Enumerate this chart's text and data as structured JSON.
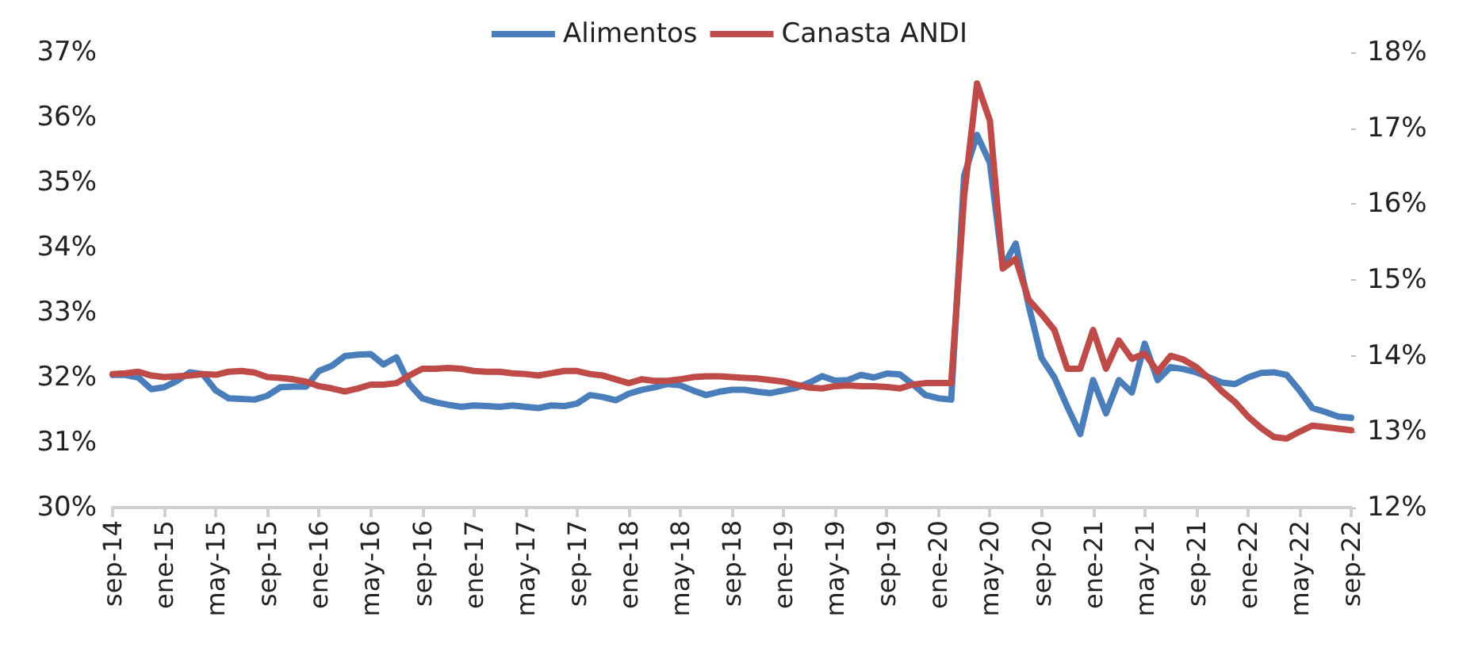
{
  "chart_data": {
    "type": "line",
    "categories": [
      "sep-14",
      null,
      null,
      null,
      "ene-15",
      null,
      null,
      null,
      "may-15",
      null,
      null,
      null,
      "sep-15",
      null,
      null,
      null,
      "ene-16",
      null,
      null,
      null,
      "may-16",
      null,
      null,
      null,
      "sep-16",
      null,
      null,
      null,
      "ene-17",
      null,
      null,
      null,
      "may-17",
      null,
      null,
      null,
      "sep-17",
      null,
      null,
      null,
      "ene-18",
      null,
      null,
      null,
      "may-18",
      null,
      null,
      null,
      "sep-18",
      null,
      null,
      null,
      "ene-19",
      null,
      null,
      null,
      "may-19",
      null,
      null,
      null,
      "sep-19",
      null,
      null,
      null,
      "ene-20",
      null,
      null,
      null,
      "may-20",
      null,
      null,
      null,
      "sep-20",
      null,
      null,
      null,
      "ene-21",
      null,
      null,
      null,
      "may-21",
      null,
      null,
      null,
      "sep-21",
      null,
      null,
      null,
      "ene-22",
      null,
      null,
      null,
      "may-22",
      null,
      null,
      null,
      "sep-22"
    ],
    "series": [
      {
        "name": "Alimentos",
        "color": "#4a7ebb",
        "values": [
          32.04,
          32.04,
          32.0,
          31.82,
          31.85,
          31.95,
          32.08,
          32.05,
          31.8,
          31.68,
          31.67,
          31.66,
          31.72,
          31.85,
          31.86,
          31.86,
          32.1,
          32.18,
          32.33,
          32.35,
          32.36,
          32.2,
          32.31,
          31.9,
          31.68,
          31.62,
          31.58,
          31.55,
          31.57,
          31.56,
          31.55,
          31.57,
          31.55,
          31.53,
          31.57,
          31.56,
          31.6,
          31.73,
          31.7,
          31.65,
          31.75,
          31.81,
          31.85,
          31.9,
          31.88,
          31.8,
          31.73,
          31.78,
          31.81,
          31.81,
          31.78,
          31.76,
          31.8,
          31.84,
          31.92,
          32.02,
          31.95,
          31.96,
          32.04,
          32.0,
          32.06,
          32.05,
          31.9,
          31.73,
          31.68,
          31.66,
          35.1,
          35.73,
          35.3,
          33.7,
          34.06,
          33.11,
          32.3,
          32.0,
          31.55,
          31.13,
          31.96,
          31.45,
          31.96,
          31.77,
          32.52,
          31.96,
          32.16,
          32.13,
          32.08,
          32.0,
          31.92,
          31.9,
          32.0,
          32.07,
          32.08,
          32.04,
          31.8,
          31.53,
          31.47,
          31.4,
          31.38
        ]
      },
      {
        "name": "Canasta ANDI",
        "color": "#be4b48",
        "axis": "y2",
        "values": [
          13.76,
          13.77,
          13.79,
          13.74,
          13.72,
          13.73,
          13.74,
          13.76,
          13.75,
          13.79,
          13.8,
          13.78,
          13.72,
          13.71,
          13.69,
          13.66,
          13.6,
          13.57,
          13.53,
          13.57,
          13.62,
          13.62,
          13.64,
          13.74,
          13.83,
          13.83,
          13.84,
          13.83,
          13.8,
          13.79,
          13.79,
          13.77,
          13.76,
          13.74,
          13.77,
          13.8,
          13.8,
          13.76,
          13.74,
          13.69,
          13.64,
          13.69,
          13.67,
          13.67,
          13.69,
          13.72,
          13.73,
          13.73,
          13.72,
          13.71,
          13.7,
          13.68,
          13.66,
          13.62,
          13.58,
          13.57,
          13.6,
          13.61,
          13.6,
          13.6,
          13.59,
          13.57,
          13.62,
          13.64,
          13.64,
          13.64,
          16.1,
          17.59,
          17.1,
          15.15,
          15.28,
          14.74,
          14.55,
          14.34,
          13.83,
          13.83,
          14.34,
          13.83,
          14.2,
          13.96,
          14.03,
          13.79,
          14.0,
          13.95,
          13.85,
          13.7,
          13.53,
          13.39,
          13.2,
          13.05,
          12.93,
          12.91,
          13.0,
          13.08,
          13.06,
          13.04,
          13.02
        ]
      }
    ],
    "ylim": [
      30,
      37
    ],
    "yticks": [
      {
        "value": 30,
        "label": "30%"
      },
      {
        "value": 31,
        "label": "31%"
      },
      {
        "value": 32,
        "label": "32%"
      },
      {
        "value": 33,
        "label": "33%"
      },
      {
        "value": 34,
        "label": "34%"
      },
      {
        "value": 35,
        "label": "35%"
      },
      {
        "value": 36,
        "label": "36%"
      },
      {
        "value": 37,
        "label": "37%"
      }
    ],
    "y2lim": [
      12,
      18
    ],
    "y2ticks": [
      {
        "value": 12,
        "label": "12%"
      },
      {
        "value": 13,
        "label": "13%"
      },
      {
        "value": 14,
        "label": "14%"
      },
      {
        "value": 15,
        "label": "15%"
      },
      {
        "value": 16,
        "label": "16%"
      },
      {
        "value": 17,
        "label": "17%"
      },
      {
        "value": 18,
        "label": "18%"
      }
    ],
    "grid": false,
    "legend": "top"
  }
}
